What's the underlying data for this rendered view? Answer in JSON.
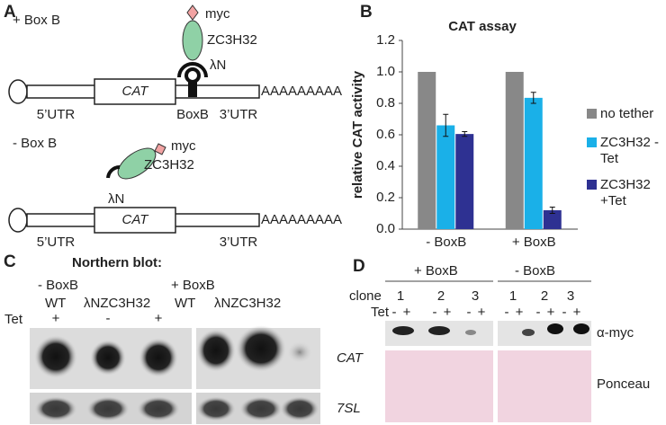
{
  "panels": {
    "a": "A",
    "b": "B",
    "c": "C",
    "d": "D"
  },
  "panel_a": {
    "with_box_b": "+ Box B",
    "without_box_b": "- Box B",
    "top": {
      "tag": "myc",
      "protein": "ZC3H32",
      "tether": "λN",
      "cat": "CAT",
      "utr5": "5’UTR",
      "boxb": "BoxB",
      "utr3": "3’UTR",
      "polya": "AAAAAAAAA"
    },
    "bottom": {
      "tag": "myc",
      "protein": "ZC3H32",
      "tether": "λN",
      "cat": "CAT",
      "utr5": "5’UTR",
      "utr3": "3’UTR",
      "polya": "AAAAAAAAA"
    }
  },
  "chart_data": {
    "type": "bar",
    "title": "CAT assay",
    "y_label": "relative CAT activity",
    "categories": [
      "- BoxB",
      "+ BoxB"
    ],
    "series": [
      {
        "name": "no tether",
        "color": "#888888",
        "values": [
          1.0,
          1.0
        ]
      },
      {
        "name": "ZC3H32 -Tet",
        "color": "#1ab0e8",
        "values": [
          0.66,
          0.835
        ],
        "errors": [
          0.07,
          0.035
        ]
      },
      {
        "name": "ZC3H32 +Tet",
        "color": "#2e3192",
        "values": [
          0.605,
          0.12
        ],
        "errors": [
          0.015,
          0.02
        ]
      }
    ],
    "ylim": [
      0,
      1.2
    ],
    "yticks": [
      {
        "value": 0,
        "label": "0.0"
      },
      0.2,
      0.4,
      0.6,
      0.8,
      {
        "value": 1,
        "label": "1.0"
      },
      1.2
    ],
    "grid": false,
    "legend": "right"
  },
  "panel_c": {
    "title": "Northern blot:",
    "groups": [
      "- BoxB",
      "+ BoxB"
    ],
    "lanes": [
      "WT",
      "λNZC3H32",
      "WT",
      "λNZC3H32"
    ],
    "tet_label": "Tet",
    "tet": [
      "+",
      "-",
      "+"
    ],
    "rows": [
      "CAT",
      "7SL"
    ]
  },
  "panel_d": {
    "groups": [
      "+ BoxB",
      "- BoxB"
    ],
    "clone_label": "clone",
    "clones": [
      "1",
      "2",
      "3",
      "1",
      "2",
      "3"
    ],
    "tet_label": "Tet",
    "tet": [
      "-",
      "+",
      "-",
      "+",
      "-",
      "+",
      "-",
      "+",
      "-",
      "+",
      "-",
      "+"
    ],
    "rows": [
      "α-myc",
      "Ponceau"
    ]
  }
}
